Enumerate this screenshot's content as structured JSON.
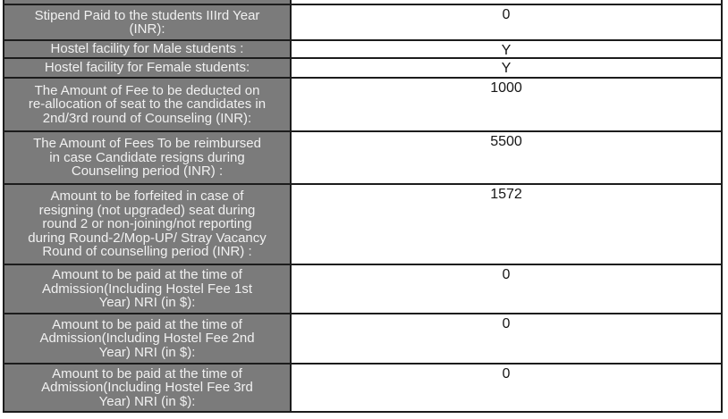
{
  "colors": {
    "label_bg": "#7b7b7b",
    "label_text": "#f1f1f1",
    "value_text": "#161616",
    "border": "#1c1c1c",
    "page_bg": "#ffffff"
  },
  "table": {
    "rows": [
      {
        "label": "",
        "value": "",
        "partial": true
      },
      {
        "label": "Stipend Paid to the students IIIrd Year\n(INR):",
        "value": "0"
      },
      {
        "label": "Hostel facility for Male students :",
        "value": "Y"
      },
      {
        "label": "Hostel facility for Female students:",
        "value": "Y"
      },
      {
        "label": "The Amount of Fee to be deducted on\nre-allocation of seat to the candidates in\n2nd/3rd round of Counseling (INR):",
        "value": "1000"
      },
      {
        "label": "The Amount of Fees To be reimbursed\nin case Candidate resigns during\nCounseling period (INR) :",
        "value": "5500"
      },
      {
        "label": "Amount to be forfeited in case of\nresigning (not upgraded) seat during\nround 2 or non-joining/not reporting\nduring Round-2/Mop-UP/ Stray Vacancy\nRound of counselling period (INR) :",
        "value": "1572"
      },
      {
        "label": "Amount to be paid at the time of\nAdmission(Including Hostel Fee 1st\nYear) NRI (in $):",
        "value": "0"
      },
      {
        "label": "Amount to be paid at the time of\nAdmission(Including Hostel Fee 2nd\nYear) NRI (in $):",
        "value": "0"
      },
      {
        "label": "Amount to be paid at the time of\nAdmission(Including Hostel Fee 3rd\nYear) NRI (in $):",
        "value": "0"
      }
    ]
  }
}
